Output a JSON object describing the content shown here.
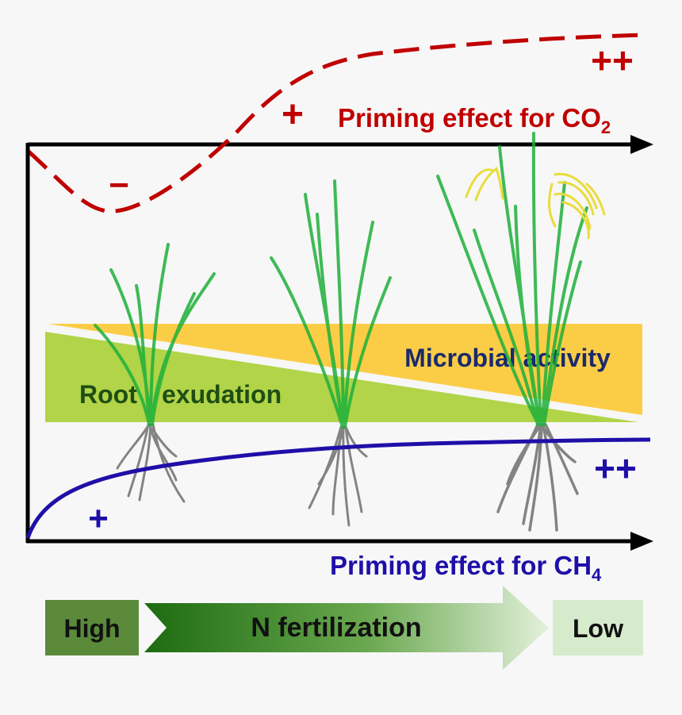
{
  "co2": {
    "label_main": "Priming effect for CO",
    "label_sub": "2",
    "sign_minus": "−",
    "sign_plus": "+",
    "sign_plusplus": "++",
    "color": "#c00000"
  },
  "ch4": {
    "label_main": "Priming effect for CH",
    "label_sub": "4",
    "sign_plus": "+",
    "sign_plusplus": "++",
    "color": "#1f0fa8"
  },
  "bands": {
    "microbial": "Microbial activity",
    "root_part1": "Root",
    "root_part2": "exudation",
    "microbial_color": "#fbcd47",
    "root_color": "#b1d448",
    "microbial_text_color": "#1a2a6c",
    "root_text_color": "#1f4e14"
  },
  "fertilization": {
    "high": "High",
    "arrow_label": "N fertilization",
    "low": "Low",
    "high_color": "#5a8a3a",
    "low_color": "#d6ebcc"
  },
  "plants": {
    "leaf_color": "#1eb03a",
    "root_color": "#777777",
    "panicle_color": "#e9dc3a"
  }
}
